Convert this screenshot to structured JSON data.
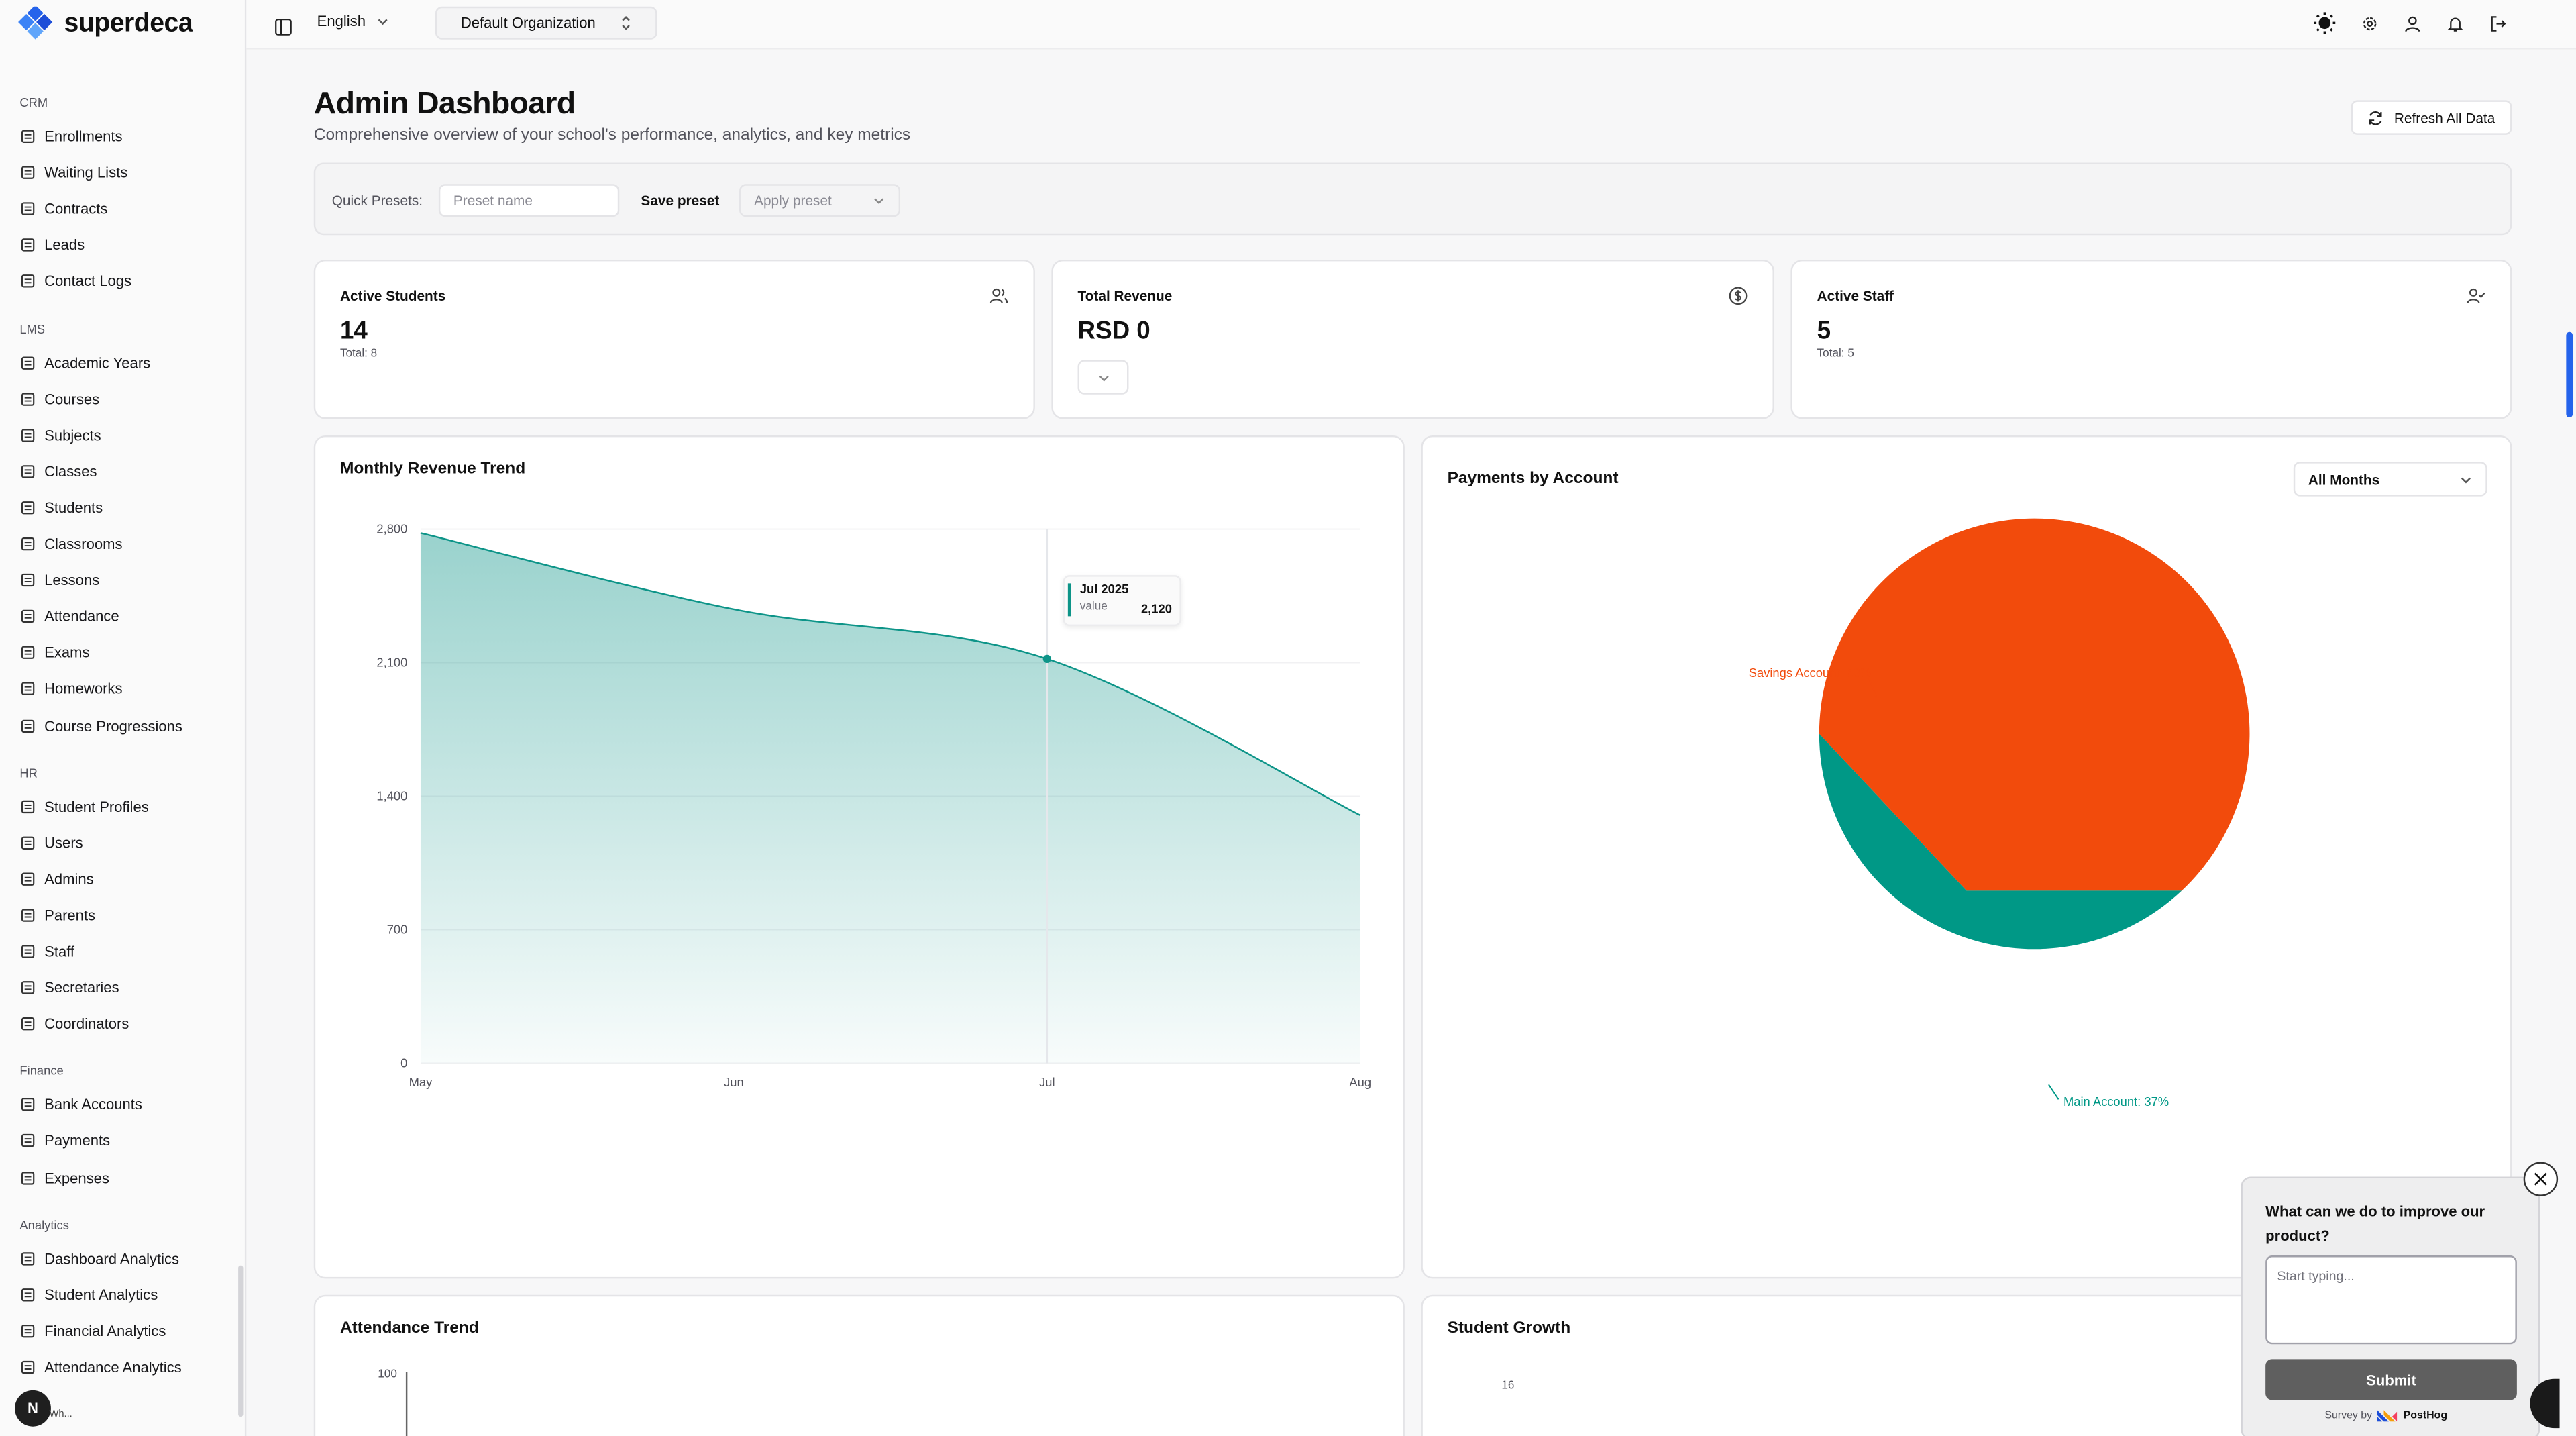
{
  "brand": {
    "name": "superdeca"
  },
  "sidebar": {
    "sections": [
      {
        "label": "CRM",
        "items": [
          "Enrollments",
          "Waiting Lists",
          "Contracts",
          "Leads",
          "Contact Logs"
        ]
      },
      {
        "label": "LMS",
        "items": [
          "Academic Years",
          "Courses",
          "Subjects",
          "Classes",
          "Students",
          "Classrooms",
          "Lessons",
          "Attendance",
          "Exams",
          "Homeworks",
          "Course Progressions"
        ]
      },
      {
        "label": "HR",
        "items": [
          "Student Profiles",
          "Users",
          "Admins",
          "Parents",
          "Staff",
          "Secretaries",
          "Coordinators"
        ]
      },
      {
        "label": "Finance",
        "items": [
          "Bank Accounts",
          "Payments",
          "Expenses"
        ]
      },
      {
        "label": "Analytics",
        "items": [
          "Dashboard Analytics",
          "Student Analytics",
          "Financial Analytics",
          "Attendance Analytics"
        ]
      }
    ],
    "avatar_letter": "N",
    "bottom_text": "Wh..."
  },
  "topbar": {
    "language": "English",
    "organization": "Default Organization"
  },
  "header": {
    "title": "Admin Dashboard",
    "subtitle": "Comprehensive overview of your school's performance, analytics, and key metrics",
    "refresh_label": "Refresh All Data"
  },
  "presets": {
    "label": "Quick Presets:",
    "input_placeholder": "Preset name",
    "save_label": "Save preset",
    "apply_placeholder": "Apply preset"
  },
  "stats": [
    {
      "title": "Active Students",
      "value": "14",
      "note": "Total: 8",
      "icon": "users-icon"
    },
    {
      "title": "Total Revenue",
      "value": "RSD 0",
      "note": "",
      "icon": "dollar-circle-icon"
    },
    {
      "title": "Active Staff",
      "value": "5",
      "note": "Total: 5",
      "icon": "user-check-icon"
    }
  ],
  "revenue_chart": {
    "title": "Monthly Revenue Trend",
    "tooltip": {
      "label": "Jul 2025",
      "key": "value",
      "value": "2,120"
    }
  },
  "payments_chart": {
    "title": "Payments by Account",
    "filter": "All Months"
  },
  "attendance_chart": {
    "title": "Attendance Trend",
    "first_tick": "100"
  },
  "growth_chart": {
    "title": "Student Growth",
    "first_tick": "16"
  },
  "chart_data": [
    {
      "type": "area",
      "title": "Monthly Revenue Trend",
      "categories": [
        "May",
        "Jun",
        "Jul",
        "Aug"
      ],
      "values": [
        2780,
        2380,
        2120,
        1300
      ],
      "yticks": [
        "0",
        "700",
        "1,400",
        "2,100",
        "2,800"
      ],
      "ylim": [
        0,
        2800
      ],
      "grid": true,
      "color": "#0d9488"
    },
    {
      "type": "pie",
      "title": "Payments by Account",
      "slices": [
        {
          "label": "Savings Account: 63%",
          "value": 63,
          "color": "#f24b0c"
        },
        {
          "label": "Main Account: 37%",
          "value": 37,
          "color": "#009886"
        }
      ]
    }
  ],
  "survey": {
    "question": "What can we do to improve our product?",
    "placeholder": "Start typing...",
    "submit_label": "Submit",
    "by_prefix": "Survey by",
    "by_brand": "PostHog"
  }
}
